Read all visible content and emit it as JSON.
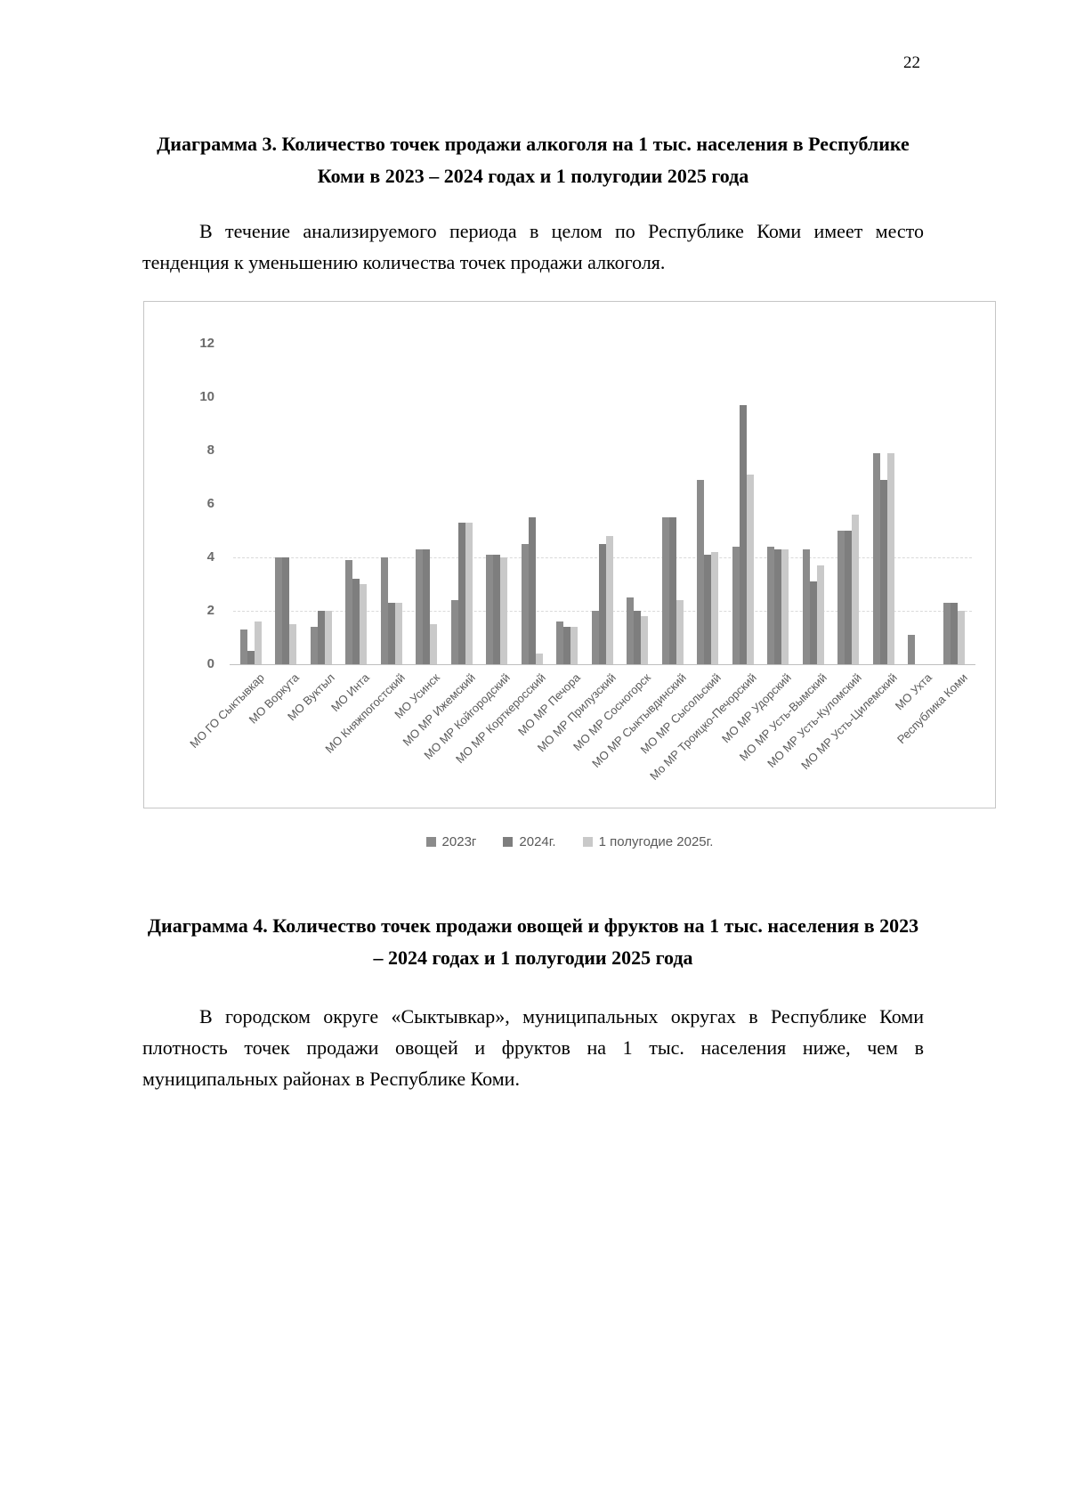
{
  "page": {
    "number": "22"
  },
  "diagram3": {
    "title": "Диаграмма 3. Количество точек продажи алкоголя на 1 тыс. населения в Республике Коми в 2023 – 2024 годах и 1 полугодии 2025 года",
    "paragraph": "В течение анализируемого периода в целом по Республике Коми имеет место тенденция к уменьшению количества точек продажи алкоголя."
  },
  "diagram4": {
    "title": "Диаграмма 4. Количество точек продажи овощей и фруктов на 1 тыс. населения в 2023 – 2024 годах и 1 полугодии 2025 года",
    "paragraph": "В городском округе «Сыктывкар», муниципальных округах в Республике Коми плотность точек продажи овощей и фруктов на 1 тыс. населения ниже, чем в муниципальных районах в Республике Коми."
  },
  "chart_data": {
    "type": "bar",
    "title": "",
    "xlabel": "",
    "ylabel": "",
    "ylim": [
      0,
      12
    ],
    "yticks": [
      0,
      2,
      4,
      6,
      8,
      10,
      12
    ],
    "grid_dashed_at": [
      2,
      4
    ],
    "legend_position": "bottom-center",
    "categories": [
      "МО ГО Сыктывкар",
      "МО Воркута",
      "МО Вуктыл",
      "МО Инта",
      "МО Княжпогостский",
      "МО Усинск",
      "МО МР Ижемский",
      "МО МР Койгородский",
      "МО МР Корткеросский",
      "МО МР Печора",
      "МО МР Прилузский",
      "МО МР Сосногорск",
      "МО МР Сыктывдинский",
      "МО МР Сысольский",
      "Мо МР Троицко-Печорский",
      "МО МР Удорский",
      "МО МР Усть-Вымский",
      "МО МР Усть-Куломский",
      "МО МР Усть-Цилемский",
      "МО Ухта",
      "Республика Коми"
    ],
    "series": [
      {
        "name": "2023г",
        "color": "#8b8b8b",
        "values": [
          1.3,
          4.0,
          1.4,
          3.9,
          4.0,
          4.3,
          2.4,
          4.1,
          4.5,
          1.6,
          2.0,
          2.5,
          5.5,
          6.9,
          4.4,
          4.4,
          4.3,
          5.0,
          7.9,
          1.1,
          2.3
        ]
      },
      {
        "name": "2024г.",
        "color": "#7e7e7e",
        "values": [
          0.5,
          4.0,
          2.0,
          3.2,
          2.3,
          4.3,
          5.3,
          4.1,
          5.5,
          1.4,
          4.5,
          2.0,
          5.5,
          4.1,
          9.7,
          4.3,
          3.1,
          5.0,
          6.9,
          0,
          2.3
        ]
      },
      {
        "name": "1 полугодие 2025г.",
        "color": "#c9c9c9",
        "values": [
          1.6,
          1.5,
          2.0,
          3.0,
          2.3,
          1.5,
          5.3,
          4.0,
          0.4,
          1.4,
          4.8,
          1.8,
          2.4,
          4.2,
          7.1,
          4.3,
          3.7,
          5.6,
          7.9,
          0,
          2.0
        ]
      }
    ]
  }
}
